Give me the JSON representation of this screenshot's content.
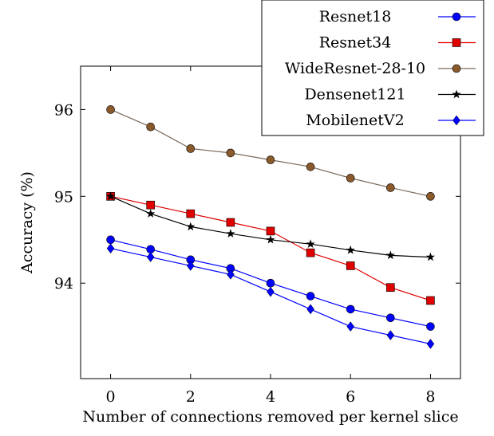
{
  "chart_data": {
    "type": "line",
    "title": "",
    "xlabel": "Number of connections removed per kernel slice",
    "ylabel": "Accuracy (%)",
    "xlim": [
      -0.75,
      8.75
    ],
    "ylim": [
      92.9,
      96.5
    ],
    "xticks": [
      0,
      2,
      4,
      6,
      8
    ],
    "yticks": [
      94,
      95,
      96
    ],
    "grid": false,
    "legend_position": "top-right",
    "x": [
      0,
      1,
      2,
      3,
      4,
      5,
      6,
      7,
      8
    ],
    "series": [
      {
        "name": "Resnet18",
        "color": "#0000ff",
        "marker": "circle",
        "values": [
          94.5,
          94.39,
          94.27,
          94.17,
          94.0,
          93.85,
          93.7,
          93.6,
          93.5
        ]
      },
      {
        "name": "Resnet34",
        "color": "#e00000",
        "marker": "square",
        "values": [
          95.0,
          94.9,
          94.8,
          94.7,
          94.6,
          94.35,
          94.2,
          93.95,
          93.8
        ]
      },
      {
        "name": "WideResnet-28-10",
        "color": "#8b5a2b",
        "line_color": "#7a6a5a",
        "marker": "circle",
        "values": [
          96.0,
          95.8,
          95.55,
          95.5,
          95.42,
          95.34,
          95.21,
          95.1,
          95.0
        ]
      },
      {
        "name": "Densenet121",
        "color": "#000000",
        "marker": "star",
        "values": [
          95.0,
          94.8,
          94.65,
          94.57,
          94.5,
          94.45,
          94.38,
          94.32,
          94.3
        ]
      },
      {
        "name": "MobilenetV2",
        "color": "#0000ff",
        "marker": "diamond",
        "values": [
          94.4,
          94.3,
          94.2,
          94.1,
          93.9,
          93.7,
          93.5,
          93.4,
          93.3
        ]
      }
    ]
  }
}
